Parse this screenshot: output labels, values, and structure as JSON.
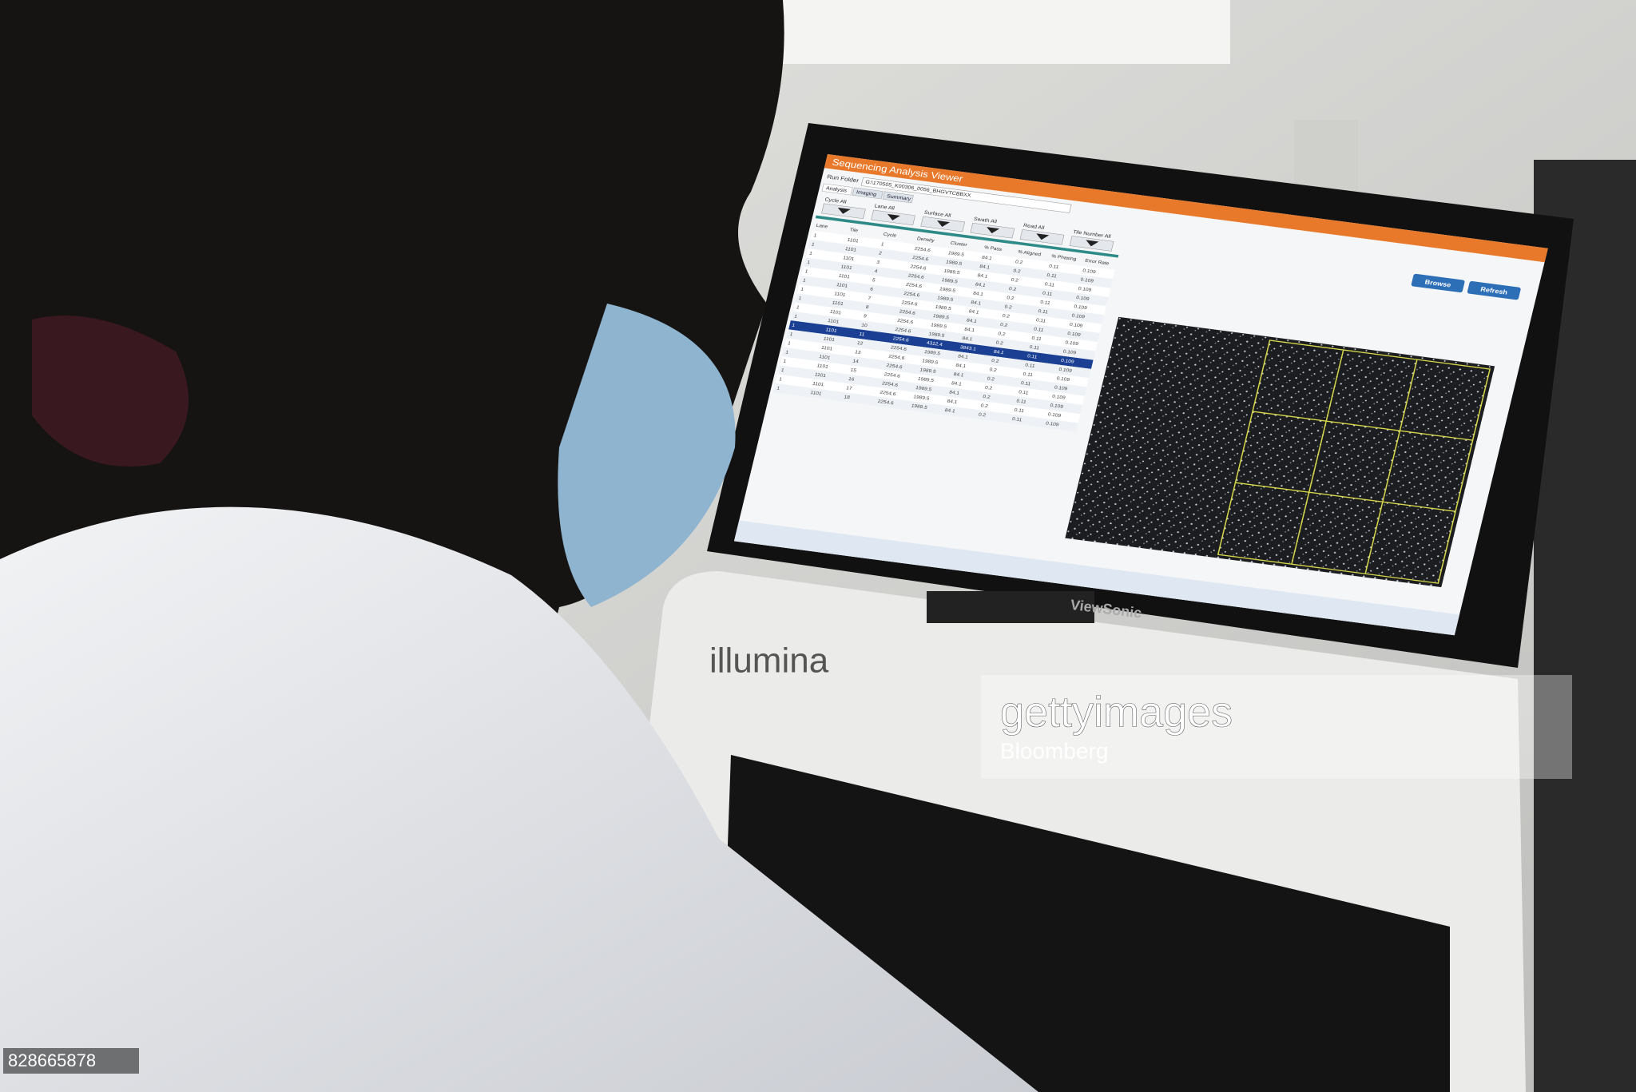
{
  "screen": {
    "title": "Sequencing Analysis Viewer",
    "run_folder_label": "Run Folder",
    "run_folder": "G:\\170505_K00306_0056_BHGVTCBBXX",
    "tabs": [
      "Analysis",
      "Imaging",
      "Summary"
    ],
    "filters": [
      "Cycle All",
      "Lane All",
      "Surface All",
      "Swath All",
      "Read All",
      "Tile Number All"
    ],
    "buttons": [
      "Browse",
      "Refresh"
    ]
  },
  "table": {
    "headers": [
      "Lane",
      "Tile",
      "Cycle",
      "Density",
      "Cluster",
      "% Pass",
      "% Aligned",
      "% Phasing",
      "Error Rate"
    ],
    "rows": [
      [
        "1",
        "1101",
        "1",
        "2254.6",
        "1989.5",
        "84.1",
        "0.2",
        "0.11",
        "0.109"
      ],
      [
        "1",
        "1101",
        "2",
        "2254.6",
        "1989.5",
        "84.1",
        "0.2",
        "0.11",
        "0.109"
      ],
      [
        "1",
        "1101",
        "3",
        "2254.6",
        "1989.5",
        "84.1",
        "0.2",
        "0.11",
        "0.109"
      ],
      [
        "1",
        "1101",
        "4",
        "2254.6",
        "1989.5",
        "84.1",
        "0.2",
        "0.11",
        "0.109"
      ],
      [
        "1",
        "1101",
        "5",
        "2254.6",
        "1989.5",
        "84.1",
        "0.2",
        "0.11",
        "0.109"
      ],
      [
        "1",
        "1101",
        "6",
        "2254.6",
        "1989.5",
        "84.1",
        "0.2",
        "0.11",
        "0.109"
      ],
      [
        "1",
        "1101",
        "7",
        "2254.6",
        "1989.5",
        "84.1",
        "0.2",
        "0.11",
        "0.109"
      ],
      [
        "1",
        "1101",
        "8",
        "2254.6",
        "1989.5",
        "84.1",
        "0.2",
        "0.11",
        "0.109"
      ],
      [
        "1",
        "1101",
        "9",
        "2254.6",
        "1989.5",
        "84.1",
        "0.2",
        "0.11",
        "0.109"
      ],
      [
        "1",
        "1101",
        "10",
        "2254.6",
        "1989.5",
        "84.1",
        "0.2",
        "0.11",
        "0.109"
      ],
      [
        "1",
        "1101",
        "11",
        "2254.6",
        "4312.4",
        "3843.1",
        "84.1",
        "0.11",
        "0.109"
      ],
      [
        "1",
        "1101",
        "12",
        "2254.6",
        "1989.5",
        "84.1",
        "0.2",
        "0.11",
        "0.109"
      ],
      [
        "1",
        "1101",
        "13",
        "2254.6",
        "1989.5",
        "84.1",
        "0.2",
        "0.11",
        "0.109"
      ],
      [
        "1",
        "1101",
        "14",
        "2254.6",
        "1989.5",
        "84.1",
        "0.2",
        "0.11",
        "0.109"
      ],
      [
        "1",
        "1101",
        "15",
        "2254.6",
        "1989.5",
        "84.1",
        "0.2",
        "0.11",
        "0.109"
      ],
      [
        "1",
        "1101",
        "16",
        "2254.6",
        "1989.5",
        "84.1",
        "0.2",
        "0.11",
        "0.109"
      ],
      [
        "1",
        "1101",
        "17",
        "2254.6",
        "1989.5",
        "84.1",
        "0.2",
        "0.11",
        "0.109"
      ],
      [
        "1",
        "1101",
        "18",
        "2254.6",
        "1989.5",
        "84.1",
        "0.2",
        "0.11",
        "0.109"
      ]
    ],
    "selected_row": 10
  },
  "monitor_brand": "ViewSonic",
  "machine_brand": "illumina",
  "watermark": {
    "brand": "gettyimages",
    "credit": "Bloomberg",
    "id": "828665878"
  }
}
